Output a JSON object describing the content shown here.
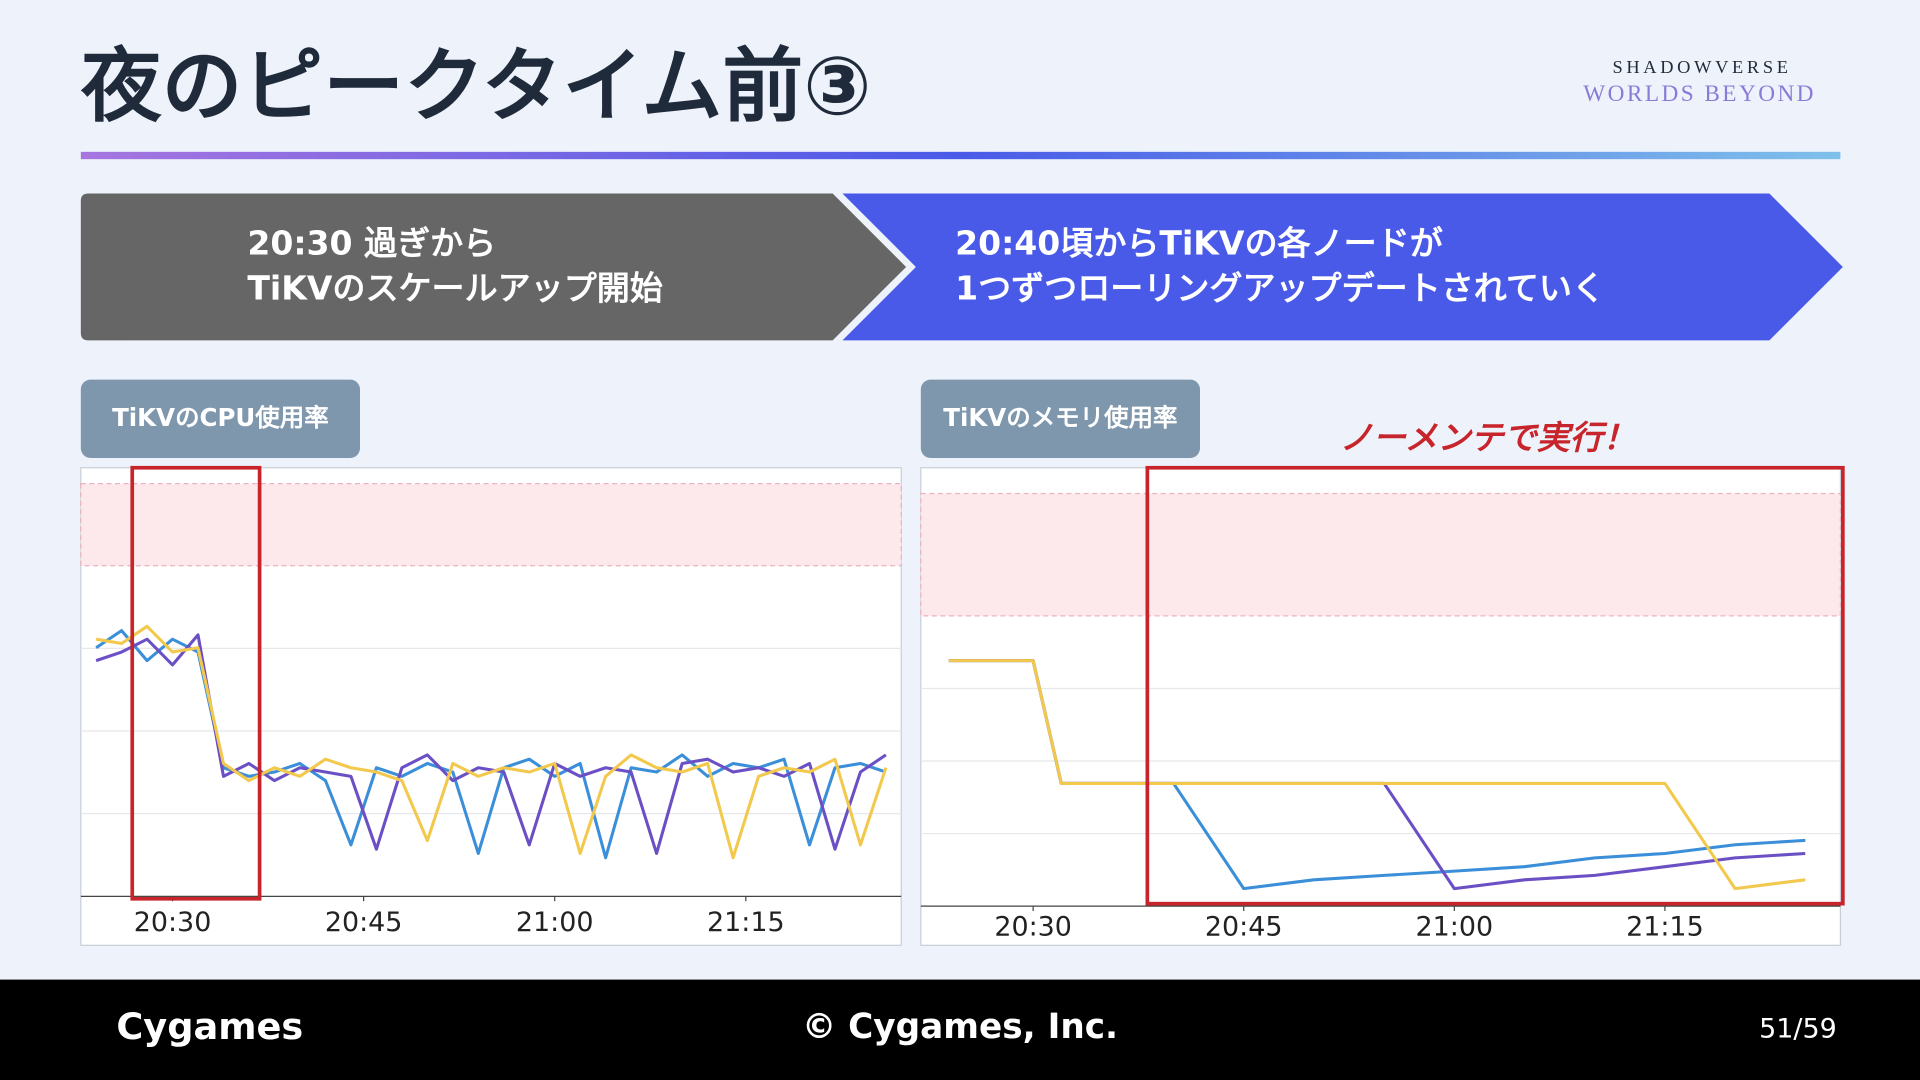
{
  "header": {
    "title": "夜のピークタイム前③",
    "logo": [
      "SHADOWVERSE",
      "WORLDS BEYOND"
    ]
  },
  "steps": [
    {
      "lines": [
        "20:30 過ぎから",
        "TiKVのスケールアップ開始"
      ]
    },
    {
      "lines": [
        "20:40頃からTiKVの各ノードが",
        "1つずつローリングアップデートされていく"
      ]
    }
  ],
  "chart_data": [
    {
      "type": "line",
      "title": "TiKVのCPU使用率",
      "x": [
        1224,
        1226,
        1228,
        1230,
        1232,
        1234,
        1236,
        1238,
        1240,
        1242,
        1244,
        1246,
        1248,
        1250,
        1252,
        1254,
        1256,
        1258,
        1260,
        1262,
        1264,
        1266,
        1268,
        1270,
        1272,
        1274,
        1276,
        1278,
        1280,
        1282,
        1284,
        1286
      ],
      "xlim": [
        1222.8,
        1287.2
      ],
      "xticks": [
        {
          "value": 1230,
          "label": "20:30"
        },
        {
          "value": 1245,
          "label": "20:45"
        },
        {
          "value": 1260,
          "label": "21:00"
        },
        {
          "value": 1275,
          "label": "21:15"
        }
      ],
      "ylim": [
        0,
        100
      ],
      "series": [
        {
          "color": "#3b8fd9",
          "values": [
            58,
            62,
            55,
            60,
            57,
            30,
            28,
            29,
            31,
            27,
            12,
            30,
            28,
            31,
            29,
            10,
            30,
            32,
            28,
            31,
            9,
            30,
            29,
            33,
            28,
            31,
            30,
            32,
            12,
            30,
            31,
            29
          ]
        },
        {
          "color": "#6b4fc4",
          "values": [
            55,
            57,
            60,
            54,
            61,
            28,
            31,
            27,
            30,
            29,
            28,
            11,
            30,
            33,
            27,
            30,
            29,
            12,
            31,
            28,
            30,
            29,
            10,
            31,
            32,
            29,
            30,
            28,
            31,
            11,
            29,
            33
          ]
        },
        {
          "color": "#f2c94c",
          "values": [
            60,
            59,
            63,
            57,
            58,
            31,
            27,
            30,
            28,
            32,
            30,
            29,
            27,
            13,
            31,
            28,
            30,
            29,
            31,
            10,
            28,
            33,
            30,
            29,
            31,
            9,
            28,
            30,
            29,
            32,
            12,
            30
          ]
        }
      ]
    },
    {
      "type": "line",
      "title": "TiKVのメモリ使用率",
      "annotation": "ノーメンテで実行！",
      "x": [
        1224,
        1230,
        1232,
        1240,
        1245,
        1250,
        1255,
        1260,
        1265,
        1270,
        1275,
        1280,
        1285
      ],
      "xlim": [
        1222,
        1287.5
      ],
      "xticks": [
        {
          "value": 1230,
          "label": "20:30"
        },
        {
          "value": 1245,
          "label": "20:45"
        },
        {
          "value": 1260,
          "label": "21:00"
        },
        {
          "value": 1275,
          "label": "21:15"
        }
      ],
      "ylim": [
        0,
        100
      ],
      "series": [
        {
          "color": "#3b8fd9",
          "values": [
            56,
            56,
            28,
            28,
            4,
            6,
            7,
            8,
            9,
            11,
            12,
            14,
            15
          ]
        },
        {
          "color": "#6b4fc4",
          "values": [
            56,
            56,
            28,
            28,
            28,
            28,
            28,
            4,
            6,
            7,
            9,
            11,
            12
          ]
        },
        {
          "color": "#f2c94c",
          "values": [
            56,
            56,
            28,
            28,
            28,
            28,
            28,
            28,
            28,
            28,
            28,
            4,
            6
          ]
        }
      ]
    }
  ],
  "footer": {
    "brand": "Cygames",
    "copyright": "© Cygames, Inc.",
    "page": "51/59"
  }
}
